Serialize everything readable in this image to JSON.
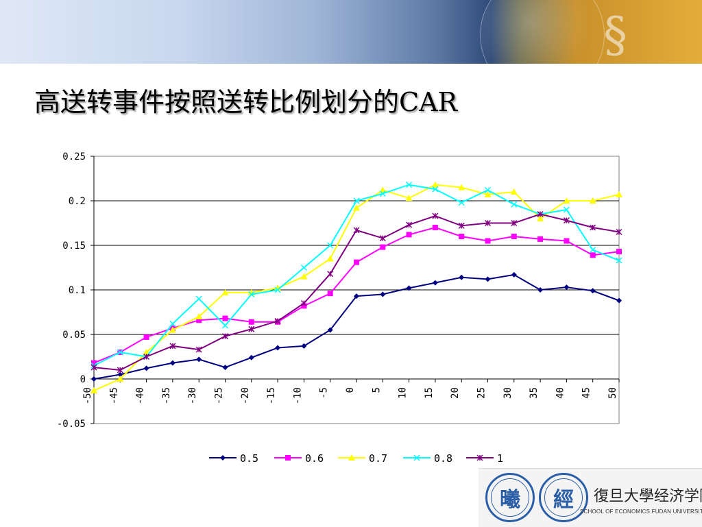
{
  "slide": {
    "title": "高送转事件按照送转比例划分的CAR"
  },
  "footer": {
    "seal_1_text": "曦",
    "seal_2_text": "經",
    "school_name_cn": "復旦大學经济学院",
    "school_name_en": "SCHOOL OF ECONOMICS FUDAN UNIVERSITY"
  },
  "icons": {
    "banner": "globe-banner-graphic",
    "seal_1": "fudan-university-seal-icon",
    "seal_2": "school-of-economics-seal-icon"
  },
  "chart_data": {
    "type": "line",
    "title": "",
    "xlabel": "",
    "ylabel": "",
    "xlim": [
      -50,
      50
    ],
    "ylim": [
      -0.05,
      0.25
    ],
    "x_ticks": [
      -50,
      -45,
      -40,
      -35,
      -30,
      -25,
      -20,
      -15,
      -10,
      -5,
      0,
      5,
      10,
      15,
      20,
      25,
      30,
      35,
      40,
      45,
      50
    ],
    "y_ticks": [
      -0.05,
      0,
      0.05,
      0.1,
      0.15,
      0.2,
      0.25
    ],
    "x_tick_labels": [
      "-50",
      "-45",
      "-40",
      "-35",
      "-30",
      "-25",
      "-20",
      "-15",
      "-10",
      "-5",
      "0",
      "5",
      "10",
      "15",
      "20",
      "25",
      "30",
      "35",
      "40",
      "45",
      "50"
    ],
    "y_tick_labels": [
      "-0.05",
      "0",
      "0.05",
      "0.1",
      "0.15",
      "0.2",
      "0.25"
    ],
    "grid": "horizontal",
    "legend_position": "bottom",
    "x": [
      -50,
      -45,
      -40,
      -35,
      -30,
      -25,
      -20,
      -15,
      -10,
      -5,
      0,
      5,
      10,
      15,
      20,
      25,
      30,
      35,
      40,
      45,
      50
    ],
    "series": [
      {
        "name": "0.5",
        "color": "#000080",
        "marker": "diamond",
        "values": [
          0.0,
          0.005,
          0.012,
          0.018,
          0.022,
          0.013,
          0.024,
          0.035,
          0.037,
          0.055,
          0.093,
          0.095,
          0.102,
          0.108,
          0.114,
          0.112,
          0.117,
          0.1,
          0.103,
          0.099,
          0.088
        ]
      },
      {
        "name": "0.6",
        "color": "#ff00ff",
        "marker": "square",
        "values": [
          0.018,
          0.03,
          0.047,
          0.057,
          0.066,
          0.068,
          0.064,
          0.064,
          0.082,
          0.096,
          0.131,
          0.148,
          0.162,
          0.17,
          0.16,
          0.155,
          0.16,
          0.157,
          0.155,
          0.139,
          0.143
        ]
      },
      {
        "name": "0.7",
        "color": "#ffff00",
        "marker": "triangle",
        "values": [
          -0.013,
          0.0,
          0.03,
          0.055,
          0.07,
          0.097,
          0.097,
          0.102,
          0.115,
          0.135,
          0.192,
          0.212,
          0.203,
          0.218,
          0.215,
          0.207,
          0.21,
          0.18,
          0.2,
          0.2,
          0.207
        ]
      },
      {
        "name": "0.8",
        "color": "#00ffff",
        "marker": "x",
        "values": [
          0.015,
          0.03,
          0.025,
          0.062,
          0.09,
          0.06,
          0.095,
          0.1,
          0.125,
          0.15,
          0.2,
          0.208,
          0.218,
          0.213,
          0.198,
          0.212,
          0.196,
          0.185,
          0.19,
          0.145,
          0.133
        ]
      },
      {
        "name": "1",
        "color": "#800080",
        "marker": "star",
        "values": [
          0.013,
          0.01,
          0.025,
          0.037,
          0.033,
          0.048,
          0.056,
          0.065,
          0.085,
          0.118,
          0.167,
          0.158,
          0.173,
          0.183,
          0.172,
          0.175,
          0.175,
          0.185,
          0.178,
          0.17,
          0.165
        ]
      }
    ]
  }
}
